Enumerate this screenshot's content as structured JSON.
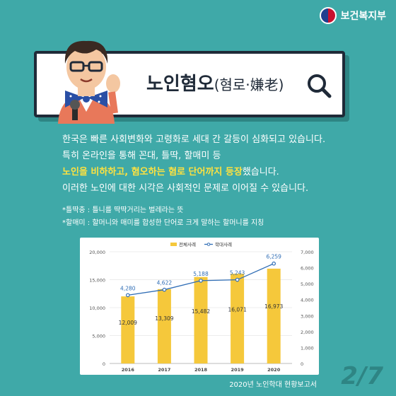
{
  "brand": {
    "name": "보건복지부"
  },
  "title": {
    "main": "노인혐오",
    "sub": "(혐로·嫌老)"
  },
  "intro": {
    "line1": "한국은 빠른 사회변화와 고령화로 세대 간 갈등이 심화되고 있습니다.",
    "line2": "특히 온라인을 통해 꼰대, 틀딱, 할매미 등",
    "line3_highlight": "노인을 비하하고, 혐오하는 혐로 단어까지 등장",
    "line3_rest": "했습니다.",
    "line4": "이러한 노인에 대한 시각은 사회적인 문제로 이어질 수 있습니다."
  },
  "notes": [
    "*틀딱충 : 틀니를 딱딱거리는 벌레라는 뜻",
    "*할매미 : 할머니와 매미를 합성한 단어로 크게 말하는 할머니를 지칭"
  ],
  "chart_data": {
    "type": "bar",
    "categories": [
      "2016",
      "2017",
      "2018",
      "2019",
      "2020"
    ],
    "series": [
      {
        "name": "전체사례",
        "type": "bar",
        "axis": "left",
        "values": [
          12009,
          13309,
          15482,
          16071,
          16973
        ],
        "color": "#f5c83b"
      },
      {
        "name": "학대사례",
        "type": "line",
        "axis": "right",
        "values": [
          4280,
          4622,
          5188,
          5243,
          6259
        ],
        "color": "#2f6db5"
      }
    ],
    "bar_labels": [
      "12,009",
      "13,309",
      "15,482",
      "16,071",
      "16,973"
    ],
    "line_labels": [
      "4,280",
      "4,622",
      "5,188",
      "5,243",
      "6,259"
    ],
    "ylim_left": [
      0,
      20000
    ],
    "ylim_right": [
      0,
      7000
    ],
    "yticks_left": [
      "20,000",
      "15,000",
      "10,000",
      "5,000",
      "0"
    ],
    "yticks_right": [
      "7,000",
      "6,000",
      "5,000",
      "4,000",
      "3,000",
      "2,000",
      "1,000",
      "0"
    ],
    "legend_position": "top-center",
    "grid": true
  },
  "source": "2020년 노인학대 현황보고서",
  "page": "2/7",
  "colors": {
    "background": "#3fa9a8",
    "highlight": "#ffe23f",
    "bar": "#f5c83b",
    "line": "#2f6db5"
  }
}
